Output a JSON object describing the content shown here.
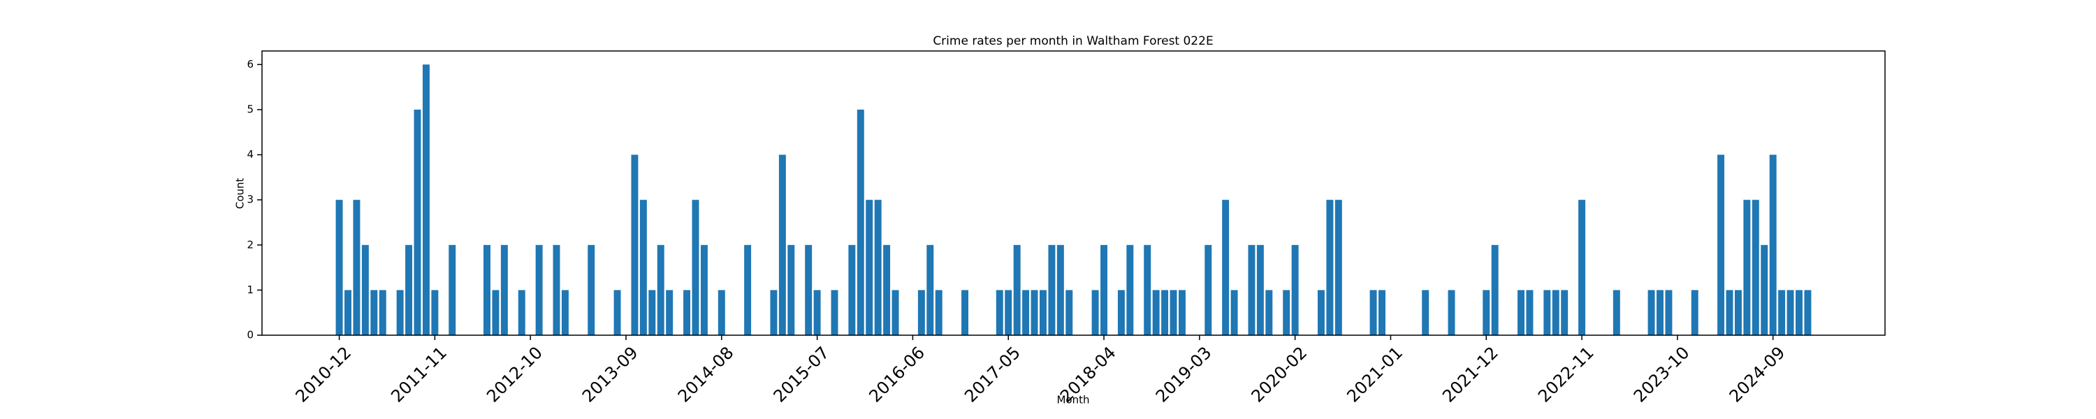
{
  "chart_data": {
    "type": "bar",
    "title": "Crime rates per month in Waltham Forest 022E",
    "x_label": "Month",
    "y_label": "Count",
    "color": "#1f77b4",
    "categories": [
      "2010-12",
      null,
      null,
      null,
      null,
      null,
      null,
      null,
      null,
      null,
      null,
      "2011-11",
      null,
      null,
      null,
      null,
      null,
      null,
      null,
      null,
      null,
      null,
      "2012-10",
      null,
      null,
      null,
      null,
      null,
      null,
      null,
      null,
      null,
      null,
      "2013-09",
      null,
      null,
      null,
      null,
      null,
      null,
      null,
      null,
      null,
      null,
      "2014-08",
      null,
      null,
      null,
      null,
      null,
      null,
      null,
      null,
      null,
      null,
      "2015-07",
      null,
      null,
      null,
      null,
      null,
      null,
      null,
      null,
      null,
      null,
      "2016-06",
      null,
      null,
      null,
      null,
      null,
      null,
      null,
      null,
      null,
      null,
      "2017-05",
      null,
      null,
      null,
      null,
      null,
      null,
      null,
      null,
      null,
      null,
      "2018-04",
      null,
      null,
      null,
      null,
      null,
      null,
      null,
      null,
      null,
      null,
      "2019-03",
      null,
      null,
      null,
      null,
      null,
      null,
      null,
      null,
      null,
      null,
      "2020-02",
      null,
      null,
      null,
      null,
      null,
      null,
      null,
      null,
      null,
      null,
      "2021-01",
      null,
      null,
      null,
      null,
      null,
      null,
      null,
      null,
      null,
      null,
      "2021-12",
      null,
      null,
      null,
      null,
      null,
      null,
      null,
      null,
      null,
      null,
      "2022-11",
      null,
      null,
      null,
      null,
      null,
      null,
      null,
      null,
      null,
      null,
      "2023-10",
      null,
      null,
      null,
      null,
      null,
      null,
      null,
      null,
      null,
      null,
      "2024-09",
      null,
      null,
      null,
      null
    ],
    "values": [
      3,
      1,
      3,
      2,
      1,
      1,
      0,
      1,
      2,
      5,
      6,
      1,
      0,
      2,
      0,
      0,
      0,
      2,
      1,
      2,
      0,
      1,
      0,
      2,
      0,
      2,
      1,
      0,
      0,
      2,
      0,
      0,
      1,
      0,
      4,
      3,
      1,
      2,
      1,
      0,
      1,
      3,
      2,
      0,
      1,
      0,
      0,
      2,
      0,
      0,
      1,
      4,
      2,
      0,
      2,
      1,
      0,
      1,
      0,
      2,
      5,
      3,
      3,
      2,
      1,
      0,
      0,
      1,
      2,
      1,
      0,
      0,
      1,
      0,
      0,
      0,
      1,
      1,
      2,
      1,
      1,
      1,
      2,
      2,
      1,
      0,
      0,
      1,
      2,
      0,
      1,
      2,
      0,
      2,
      1,
      1,
      1,
      1,
      0,
      0,
      2,
      0,
      3,
      1,
      0,
      2,
      2,
      1,
      0,
      1,
      2,
      0,
      0,
      1,
      3,
      3,
      0,
      0,
      0,
      1,
      1,
      0,
      0,
      0,
      0,
      1,
      0,
      0,
      1,
      0,
      0,
      0,
      1,
      2,
      0,
      0,
      1,
      1,
      0,
      1,
      1,
      1,
      0,
      3,
      0,
      0,
      0,
      1,
      0,
      0,
      0,
      1,
      1,
      1,
      0,
      0,
      1,
      0,
      0,
      4,
      1,
      1,
      3,
      3,
      2,
      4,
      1,
      1,
      1,
      1
    ],
    "ylim": [
      0,
      6.3
    ],
    "yticks": [
      0,
      1,
      2,
      3,
      4,
      5,
      6
    ]
  }
}
